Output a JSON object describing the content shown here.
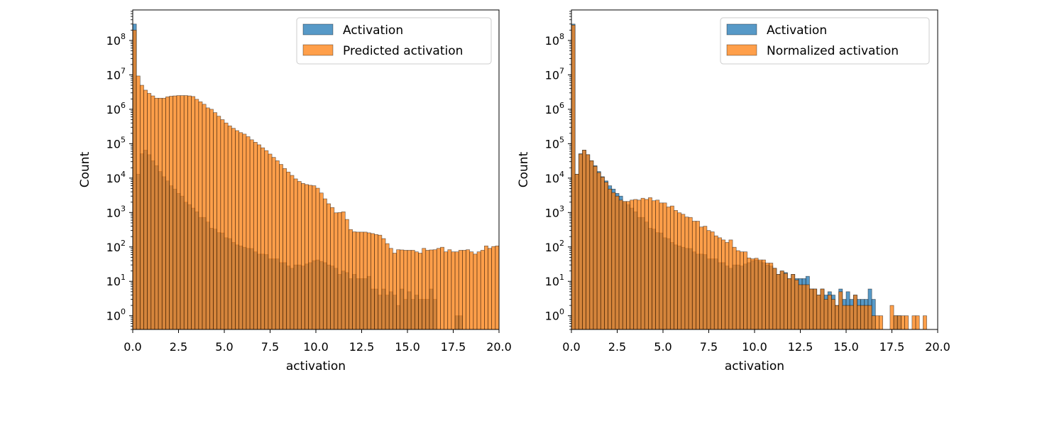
{
  "chart_data": [
    {
      "type": "bar",
      "subtype": "histogram-overlay",
      "xlabel": "activation",
      "ylabel": "Count",
      "xlim": [
        0,
        20
      ],
      "ylim": [
        0.4,
        770000000
      ],
      "yscale": "log",
      "bin_width": 0.2,
      "xticks": [
        "0.0",
        "2.5",
        "5.0",
        "7.5",
        "10.0",
        "12.5",
        "15.0",
        "17.5",
        "20.0"
      ],
      "yticks": [
        {
          "base": "10",
          "exp": "0"
        },
        {
          "base": "10",
          "exp": "1"
        },
        {
          "base": "10",
          "exp": "2"
        },
        {
          "base": "10",
          "exp": "3"
        },
        {
          "base": "10",
          "exp": "4"
        },
        {
          "base": "10",
          "exp": "5"
        },
        {
          "base": "10",
          "exp": "6"
        },
        {
          "base": "10",
          "exp": "7"
        },
        {
          "base": "10",
          "exp": "8"
        }
      ],
      "grid": false,
      "legend_position": "top-right",
      "series": [
        {
          "name": "Activation",
          "color": "#1f77b4",
          "values": [
            300000000,
            13000,
            51000,
            65000,
            48000,
            32000,
            23000,
            15500,
            11000,
            8300,
            6000,
            4800,
            3600,
            3000,
            2000,
            1700,
            1350,
            1050,
            720,
            720,
            530,
            350,
            330,
            260,
            255,
            185,
            175,
            135,
            115,
            107,
            98,
            91,
            90,
            72,
            62,
            62,
            60,
            45,
            45,
            45,
            35,
            35,
            28,
            24,
            30,
            30,
            28,
            32,
            35,
            40,
            42,
            38,
            35,
            30,
            28,
            24,
            16,
            20,
            18,
            12,
            16,
            12,
            12,
            12,
            14,
            6,
            6,
            4,
            6,
            4,
            5,
            4,
            2,
            6,
            3,
            5,
            3,
            4,
            3,
            3,
            3,
            6,
            3,
            0,
            0,
            0,
            0,
            0,
            1,
            1,
            0,
            0,
            0,
            0,
            0,
            0,
            0,
            0,
            0,
            0
          ]
        },
        {
          "name": "Predicted activation",
          "color": "#ff7f0e",
          "values": [
            200000000,
            9300000,
            5000000,
            3600000,
            2900000,
            2450000,
            2100000,
            2100000,
            2100000,
            2300000,
            2400000,
            2450000,
            2500000,
            2500000,
            2500000,
            2450000,
            2350000,
            1950000,
            1650000,
            1400000,
            1100000,
            1000000,
            800000,
            630000,
            500000,
            400000,
            330000,
            280000,
            240000,
            210000,
            190000,
            160000,
            130000,
            110000,
            93000,
            76000,
            63000,
            50000,
            40000,
            32000,
            25000,
            19000,
            15000,
            12000,
            9500,
            8000,
            7000,
            6500,
            6200,
            6000,
            5100,
            3700,
            2500,
            1800,
            1400,
            980,
            1000,
            1050,
            630,
            320,
            275,
            270,
            270,
            270,
            257,
            245,
            230,
            220,
            175,
            125,
            91,
            66,
            83,
            82,
            80,
            80,
            80,
            72,
            66,
            91,
            80,
            82,
            83,
            91,
            98,
            72,
            83,
            72,
            72,
            80,
            80,
            83,
            72,
            62,
            72,
            80,
            107,
            91,
            103,
            107
          ]
        }
      ]
    },
    {
      "type": "bar",
      "subtype": "histogram-overlay",
      "xlabel": "activation",
      "ylabel": "Count",
      "xlim": [
        0,
        20
      ],
      "ylim": [
        0.4,
        770000000
      ],
      "yscale": "log",
      "bin_width": 0.2,
      "xticks": [
        "0.0",
        "2.5",
        "5.0",
        "7.5",
        "10.0",
        "12.5",
        "15.0",
        "17.5",
        "20.0"
      ],
      "yticks": [
        {
          "base": "10",
          "exp": "0"
        },
        {
          "base": "10",
          "exp": "1"
        },
        {
          "base": "10",
          "exp": "2"
        },
        {
          "base": "10",
          "exp": "3"
        },
        {
          "base": "10",
          "exp": "4"
        },
        {
          "base": "10",
          "exp": "5"
        },
        {
          "base": "10",
          "exp": "6"
        },
        {
          "base": "10",
          "exp": "7"
        },
        {
          "base": "10",
          "exp": "8"
        }
      ],
      "grid": false,
      "legend_position": "top-right",
      "series": [
        {
          "name": "Activation",
          "color": "#1f77b4",
          "values": [
            300000000,
            13000,
            51000,
            65000,
            48000,
            32000,
            23000,
            15500,
            11000,
            8300,
            6000,
            4800,
            3600,
            3000,
            2000,
            1700,
            1350,
            1050,
            720,
            720,
            530,
            350,
            330,
            260,
            255,
            185,
            175,
            135,
            115,
            107,
            98,
            91,
            90,
            72,
            62,
            62,
            60,
            45,
            45,
            45,
            35,
            35,
            28,
            24,
            30,
            30,
            28,
            32,
            35,
            40,
            42,
            38,
            35,
            30,
            28,
            24,
            16,
            20,
            18,
            12,
            16,
            12,
            12,
            12,
            14,
            6,
            6,
            4,
            6,
            4,
            5,
            4,
            2,
            6,
            3,
            5,
            3,
            4,
            3,
            3,
            3,
            6,
            3,
            0,
            0,
            0,
            0,
            0,
            1,
            1,
            0,
            0,
            0,
            0,
            0,
            0,
            0,
            0,
            0,
            0
          ]
        },
        {
          "name": "Normalized activation",
          "color": "#ff7f0e",
          "values": [
            280000000,
            13000,
            50000,
            65000,
            48000,
            32000,
            22000,
            14500,
            10700,
            7600,
            4800,
            3800,
            3000,
            2300,
            2100,
            2100,
            2300,
            2400,
            2300,
            2600,
            2400,
            2700,
            2200,
            2300,
            1900,
            1900,
            1450,
            1550,
            1150,
            980,
            890,
            740,
            720,
            560,
            560,
            380,
            400,
            300,
            275,
            210,
            185,
            160,
            135,
            160,
            98,
            78,
            72,
            72,
            48,
            45,
            47,
            42,
            42,
            34,
            34,
            24,
            16,
            20,
            17,
            12,
            16,
            11,
            8,
            8,
            8,
            6,
            6,
            4,
            6,
            3,
            4,
            3,
            2,
            5,
            2,
            2,
            2,
            4,
            2,
            2,
            2,
            2,
            1,
            1,
            1,
            0,
            0,
            2,
            1,
            1,
            1,
            1,
            0,
            1,
            1,
            0,
            1,
            0,
            0,
            0
          ]
        }
      ]
    }
  ]
}
